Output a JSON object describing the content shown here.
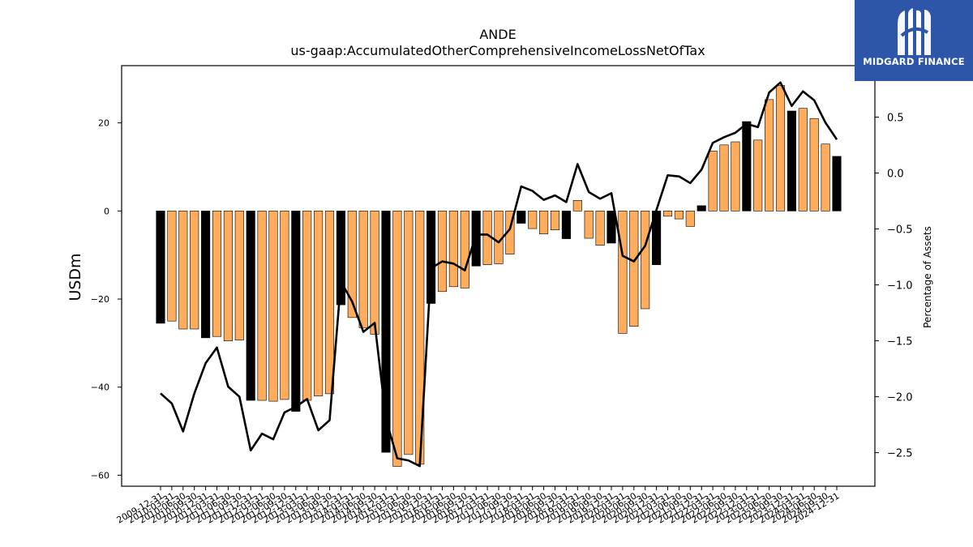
{
  "chart_data": {
    "type": "bar",
    "title": "ANDE",
    "subtitle": "us-gaap:AccumulatedOtherComprehensiveIncomeLossNetOfTax",
    "ylabel": "USDm",
    "y2label": "Percentage of Assets",
    "ylim": [
      -62.5,
      33
    ],
    "y2lim": [
      -2.8,
      0.96
    ],
    "yticks": [
      -60,
      -40,
      -20,
      0,
      20
    ],
    "y2ticks": [
      -2.5,
      -2.0,
      -1.5,
      -1.0,
      -0.5,
      0.0,
      0.5
    ],
    "y2ticklabels": [
      "−2.5",
      "−2.0",
      "−1.5",
      "−1.0",
      "−0.5",
      "0.0",
      "0.5"
    ],
    "ytick_labels": [
      "−60",
      "−40",
      "−20",
      "0",
      "20"
    ],
    "grid": false,
    "colors": {
      "annual_bar": "#000000",
      "quarter_bar": "#ffad5c",
      "line": "#000000"
    },
    "categories": [
      "2009-12-31",
      "2010-03-31",
      "2010-06-30",
      "2010-09-30",
      "2010-12-31",
      "2011-03-31",
      "2011-06-30",
      "2011-09-30",
      "2011-12-31",
      "2012-03-31",
      "2012-06-30",
      "2012-09-30",
      "2012-12-31",
      "2013-03-31",
      "2013-06-30",
      "2013-09-30",
      "2013-12-31",
      "2014-03-31",
      "2014-06-30",
      "2014-09-30",
      "2014-12-31",
      "2015-03-31",
      "2015-06-30",
      "2015-09-30",
      "2015-12-31",
      "2016-03-31",
      "2016-06-30",
      "2016-09-30",
      "2016-12-31",
      "2017-03-31",
      "2017-06-30",
      "2017-09-30",
      "2017-12-31",
      "2018-03-31",
      "2018-06-30",
      "2018-09-30",
      "2018-12-31",
      "2019-03-31",
      "2019-06-30",
      "2019-09-30",
      "2019-12-31",
      "2020-03-31",
      "2020-06-30",
      "2020-09-30",
      "2020-12-31",
      "2021-03-31",
      "2021-06-30",
      "2021-09-30",
      "2021-12-31",
      "2022-03-31",
      "2022-06-30",
      "2022-09-30",
      "2022-12-31",
      "2023-03-31",
      "2023-06-30",
      "2023-09-30",
      "2023-12-31",
      "2024-03-31",
      "2024-06-30",
      "2024-09-30",
      "2024-12-31"
    ],
    "values": [
      -25.5,
      -25,
      -26.8,
      -26.8,
      -28.8,
      -28.5,
      -29.5,
      -29.3,
      -43,
      -43,
      -43.2,
      -42.8,
      -45.5,
      -43,
      -42,
      -41.5,
      -21.3,
      -24.2,
      -26.5,
      -28,
      -54.8,
      -58,
      -55.3,
      -57.5,
      -21,
      -18.3,
      -17.2,
      -17.5,
      -12.5,
      -12.2,
      -12,
      -9.8,
      -2.8,
      -4,
      -5.2,
      -4.3,
      -6.3,
      2.4,
      -6.2,
      -7.8,
      -7.3,
      -27.8,
      -26.2,
      -22.2,
      -12.2,
      -1.2,
      -1.8,
      -3.5,
      1.2,
      13.6,
      15,
      15.7,
      20.3,
      16.1,
      25.3,
      28.5,
      22.7,
      23.3,
      21,
      15.2,
      12.4
    ],
    "annual": [
      true,
      false,
      false,
      false,
      true,
      false,
      false,
      false,
      true,
      false,
      false,
      false,
      true,
      false,
      false,
      false,
      true,
      false,
      false,
      false,
      true,
      false,
      false,
      false,
      true,
      false,
      false,
      false,
      true,
      false,
      false,
      false,
      true,
      false,
      false,
      false,
      true,
      false,
      false,
      false,
      true,
      false,
      false,
      false,
      true,
      false,
      false,
      false,
      true,
      false,
      false,
      false,
      true,
      false,
      false,
      false,
      true,
      false,
      false,
      false,
      true
    ],
    "series": [
      {
        "axis": "right",
        "values": [
          -1.97,
          -2.06,
          -2.31,
          -1.97,
          -1.7,
          -1.56,
          -1.91,
          -2.0,
          -2.48,
          -2.33,
          -2.38,
          -2.14,
          -2.09,
          -2.02,
          -2.3,
          -2.21,
          -0.97,
          -1.15,
          -1.42,
          -1.34,
          -2.2,
          -2.55,
          -2.57,
          -2.62,
          -0.85,
          -0.79,
          -0.81,
          -0.87,
          -0.55,
          -0.55,
          -0.62,
          -0.5,
          -0.12,
          -0.16,
          -0.24,
          -0.2,
          -0.26,
          0.08,
          -0.17,
          -0.23,
          -0.18,
          -0.74,
          -0.79,
          -0.65,
          -0.33,
          -0.02,
          -0.03,
          -0.09,
          0.03,
          0.27,
          0.32,
          0.36,
          0.44,
          0.41,
          0.72,
          0.81,
          0.6,
          0.73,
          0.65,
          0.45,
          0.3
        ]
      }
    ]
  },
  "logo": {
    "name": "MIDGARD FINANCE"
  }
}
